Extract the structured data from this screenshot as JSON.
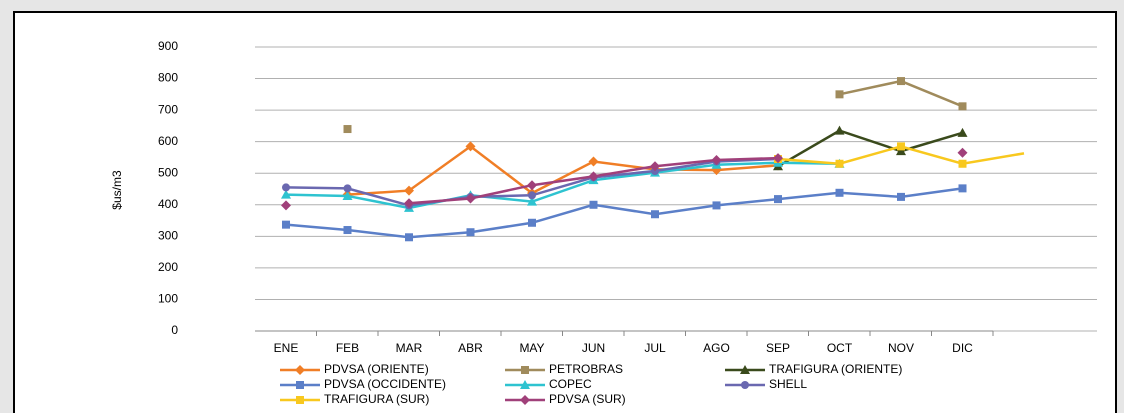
{
  "chart_data": {
    "type": "line",
    "y_label": "$us/m3",
    "categories": [
      "ENE",
      "FEB",
      "MAR",
      "ABR",
      "MAY",
      "JUN",
      "JUL",
      "AGO",
      "SEP",
      "OCT",
      "NOV",
      "DIC",
      null
    ],
    "ylim": [
      0,
      900
    ],
    "yticks": [
      0,
      100,
      200,
      300,
      400,
      500,
      600,
      700,
      800,
      900
    ],
    "grid": true,
    "legend": "bottom",
    "series": [
      {
        "name": "PDVSA (ORIENTE)",
        "color": "#f07e26",
        "marker": "diamond",
        "values": [
          null,
          432,
          445,
          585,
          437,
          537,
          512,
          510,
          525,
          null,
          null,
          null,
          null
        ]
      },
      {
        "name": "PETROBRAS",
        "color": "#a08b5c",
        "marker": "square",
        "values": [
          null,
          640,
          null,
          null,
          null,
          null,
          null,
          null,
          null,
          750,
          792,
          712,
          null
        ]
      },
      {
        "name": "TRAFIGURA (ORIENTE)",
        "color": "#3a4a1c",
        "marker": "triangle",
        "values": [
          null,
          null,
          null,
          null,
          null,
          null,
          null,
          null,
          522,
          635,
          570,
          628,
          null
        ]
      },
      {
        "name": "PDVSA (OCCIDENTE)",
        "color": "#5b7fc8",
        "marker": "square",
        "values": [
          337,
          320,
          297,
          313,
          343,
          400,
          370,
          398,
          418,
          438,
          425,
          452,
          null
        ]
      },
      {
        "name": "COPEC",
        "color": "#2ec3d0",
        "marker": "triangle",
        "values": [
          432,
          428,
          390,
          430,
          410,
          478,
          502,
          527,
          533,
          530,
          null,
          null,
          null
        ]
      },
      {
        "name": "SHELL",
        "color": "#6a68b0",
        "marker": "circle",
        "values": [
          455,
          452,
          398,
          425,
          430,
          487,
          507,
          537,
          545,
          null,
          null,
          null,
          null
        ]
      },
      {
        "name": "TRAFIGURA (SUR)",
        "color": "#f8c81e",
        "marker": "square",
        "values": [
          null,
          null,
          null,
          null,
          null,
          null,
          null,
          null,
          545,
          530,
          585,
          530,
          563
        ]
      },
      {
        "name": "PDVSA (SUR)",
        "color": "#a0407a",
        "marker": "diamond",
        "values": [
          398,
          null,
          405,
          420,
          462,
          490,
          522,
          542,
          548,
          null,
          null,
          565,
          null
        ]
      }
    ]
  }
}
